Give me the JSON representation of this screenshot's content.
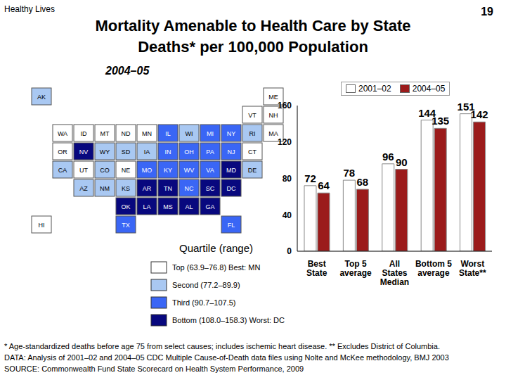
{
  "header": {
    "label": "Healthy Lives",
    "page": "19"
  },
  "title": [
    "Mortality Amenable to Health Care by State",
    "Deaths* per 100,000 Population"
  ],
  "map": {
    "title": "2004–05",
    "legend_title": "Quartile (range)",
    "quartiles": [
      {
        "label": "Top (63.9–76.8) Best: MN",
        "color": "#ffffff",
        "states": [
          "MN",
          "ND",
          "MT",
          "WA",
          "OR",
          "ID",
          "UT",
          "NE",
          "VT",
          "NH",
          "ME",
          "MA",
          "CT",
          "HI"
        ]
      },
      {
        "label": "Second (77.2–89.9)",
        "color": "#a9c8f2",
        "states": [
          "CA",
          "AZ",
          "NM",
          "WY",
          "SD",
          "KS",
          "CO",
          "IA",
          "WI",
          "AK",
          "RI",
          "DE"
        ]
      },
      {
        "label": "Third (90.7–107.5)",
        "color": "#3a66f5",
        "states": [
          "TX",
          "MO",
          "IL",
          "IN",
          "OH",
          "MI",
          "PA",
          "NY",
          "NJ",
          "WV",
          "VA",
          "NC",
          "KY",
          "FL"
        ]
      },
      {
        "label": "Bottom (108.0–158.3) Worst: DC",
        "color": "#08087e",
        "states": [
          "NV",
          "OK",
          "AR",
          "LA",
          "MS",
          "AL",
          "GA",
          "TN",
          "SC",
          "MD",
          "DC"
        ]
      }
    ]
  },
  "chart_data": {
    "type": "bar",
    "categories": [
      "Best\nState",
      "Top 5\naverage",
      "All\nStates\nMedian",
      "Bottom 5\naverage",
      "Worst\nState**"
    ],
    "series": [
      {
        "name": "2001–02",
        "color": "#ffffff",
        "values": [
          72,
          78,
          96,
          144,
          151
        ]
      },
      {
        "name": "2004–05",
        "color": "#9b1b1b",
        "values": [
          64,
          68,
          90,
          135,
          142
        ]
      }
    ],
    "ylim": [
      0,
      160
    ],
    "yticks": [
      0,
      40,
      80,
      120,
      160
    ],
    "grid": false,
    "legend": "top",
    "data_labels": true
  },
  "footnotes": [
    "* Age-standardized deaths before age 75 from select causes; includes ischemic heart disease. ** Excludes District of Columbia.",
    "DATA: Analysis of 2001–02 and 2004–05 CDC Multiple Cause-of-Death data files using Nolte and McKee methodology, BMJ 2003",
    "SOURCE: Commonwealth Fund State Scorecard on Health System Performance, 2009"
  ]
}
